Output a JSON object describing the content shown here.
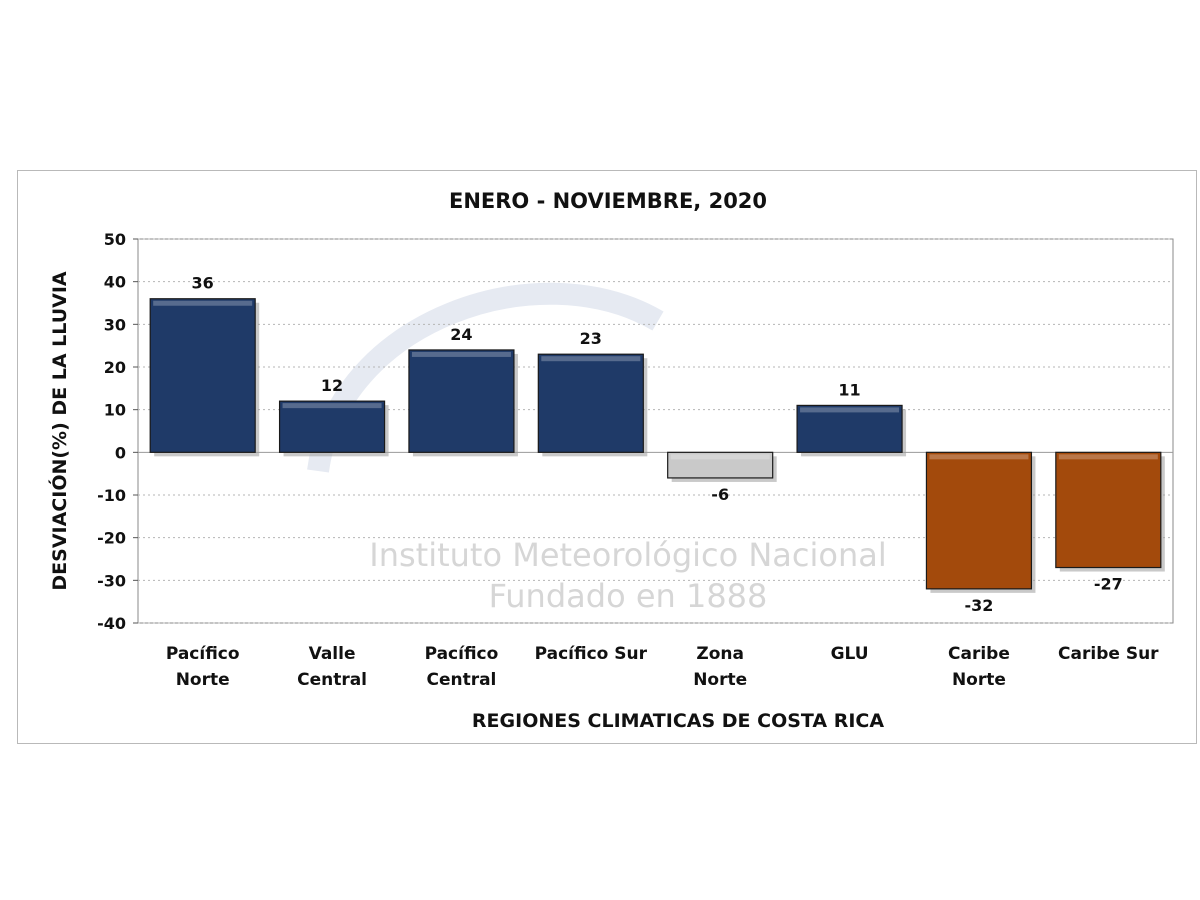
{
  "chart_data": {
    "type": "bar",
    "title": "ENERO - NOVIEMBRE, 2020",
    "xlabel": "REGIONES CLIMATICAS DE COSTA RICA",
    "ylabel": "DESVIACIÓN(%) DE LA LLUVIA",
    "ylim": [
      -40,
      50
    ],
    "yticks": [
      50,
      40,
      30,
      20,
      10,
      0,
      -10,
      -20,
      -30,
      -40
    ],
    "grid": true,
    "categories": [
      [
        "Pacífico",
        "Norte"
      ],
      [
        "Valle",
        "Central"
      ],
      [
        "Pacífico",
        "Central"
      ],
      [
        "Pacífico Sur"
      ],
      [
        "Zona",
        "Norte"
      ],
      [
        "GLU"
      ],
      [
        "Caribe",
        "Norte"
      ],
      [
        "Caribe Sur"
      ]
    ],
    "values": [
      36,
      12,
      24,
      23,
      -6,
      11,
      -32,
      -27
    ],
    "bar_colors": [
      "#1f3a68",
      "#1f3a68",
      "#1f3a68",
      "#1f3a68",
      "#c9c9c9",
      "#1f3a68",
      "#a34a0c",
      "#a34a0c"
    ]
  },
  "watermark": {
    "line1": "Instituto Meteorológico Nacional",
    "line2": "Fundado en 1888",
    "color": "#d6d6d6"
  }
}
